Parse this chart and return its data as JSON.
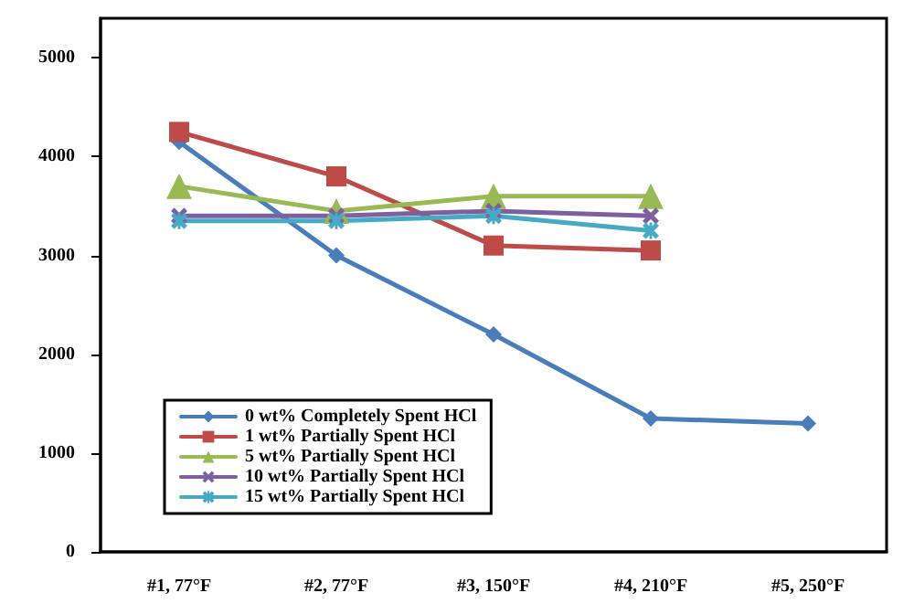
{
  "chart_data": {
    "type": "line",
    "categories": [
      "#1, 77°F",
      "#2, 77°F",
      "#3, 150°F",
      "#4, 210°F",
      "#5, 250°F"
    ],
    "series": [
      {
        "name": "0 wt% Completely Spent HCl",
        "color": "#4a7ebb",
        "marker": "diamond",
        "values": [
          4150,
          3000,
          2200,
          1350,
          1300
        ]
      },
      {
        "name": "1 wt% Partially Spent HCl",
        "color": "#be4b48",
        "marker": "square",
        "values": [
          4250,
          3800,
          3100,
          3050,
          null
        ]
      },
      {
        "name": "5 wt% Partially Spent HCl",
        "color": "#98b954",
        "marker": "triangle",
        "values": [
          3700,
          3450,
          3600,
          3600,
          null
        ]
      },
      {
        "name": "10 wt% Partially Spent HCl",
        "color": "#7d60a0",
        "marker": "cross",
        "values": [
          3400,
          3400,
          3450,
          3400,
          null
        ]
      },
      {
        "name": "15 wt% Partially Spent HCl",
        "color": "#46aac5",
        "marker": "cross",
        "values": [
          3350,
          3350,
          3400,
          3250,
          null
        ]
      }
    ],
    "ylim": [
      0,
      5400
    ],
    "yticks": [
      0,
      1000,
      2000,
      3000,
      4000,
      5000
    ],
    "grid": false,
    "legend": "bottom left",
    "line_style": "solid"
  }
}
